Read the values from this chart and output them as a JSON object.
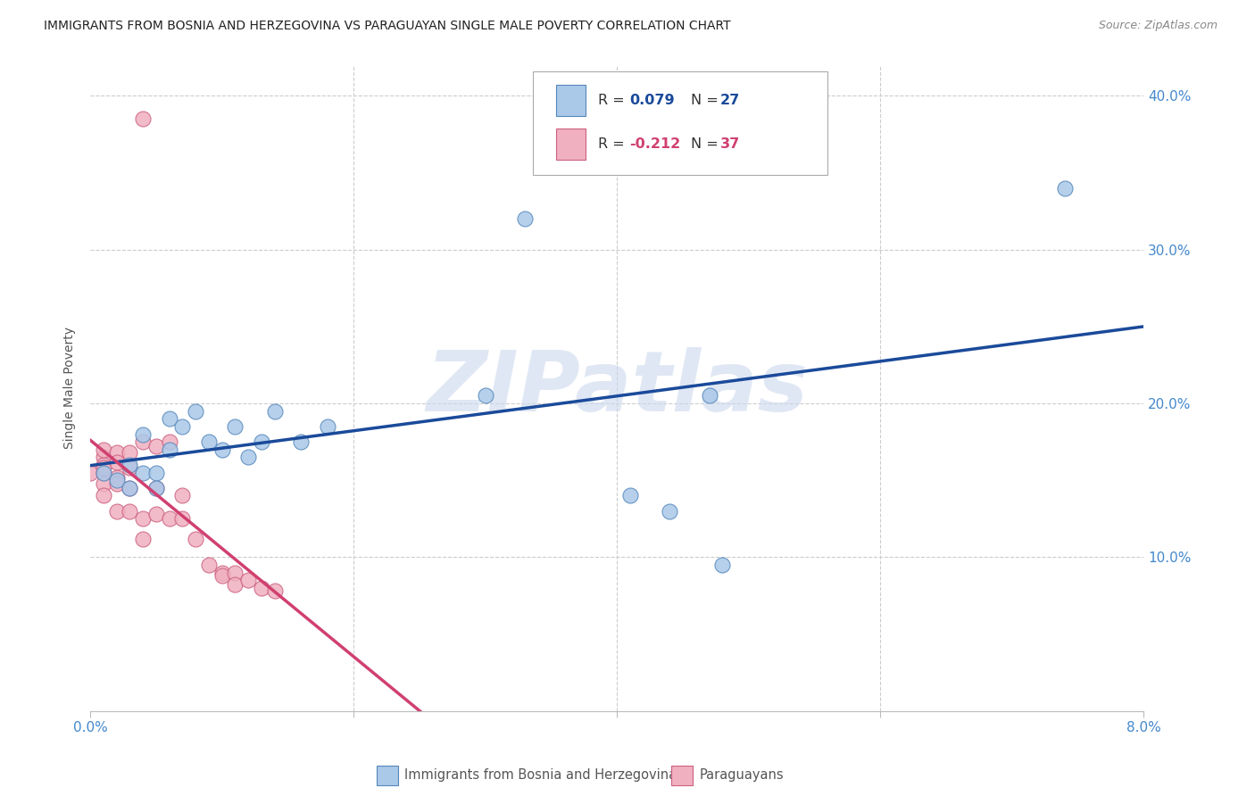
{
  "title": "IMMIGRANTS FROM BOSNIA AND HERZEGOVINA VS PARAGUAYAN SINGLE MALE POVERTY CORRELATION CHART",
  "source": "Source: ZipAtlas.com",
  "ylabel": "Single Male Poverty",
  "legend_label_blue": "Immigrants from Bosnia and Herzegovina",
  "legend_label_pink": "Paraguayans",
  "xlim": [
    0.0,
    0.08
  ],
  "ylim": [
    0.0,
    0.42
  ],
  "blue_scatter": [
    [
      0.001,
      0.155
    ],
    [
      0.002,
      0.15
    ],
    [
      0.003,
      0.16
    ],
    [
      0.003,
      0.145
    ],
    [
      0.004,
      0.155
    ],
    [
      0.004,
      0.18
    ],
    [
      0.005,
      0.155
    ],
    [
      0.005,
      0.145
    ],
    [
      0.006,
      0.19
    ],
    [
      0.006,
      0.17
    ],
    [
      0.007,
      0.185
    ],
    [
      0.008,
      0.195
    ],
    [
      0.009,
      0.175
    ],
    [
      0.01,
      0.17
    ],
    [
      0.011,
      0.185
    ],
    [
      0.012,
      0.165
    ],
    [
      0.013,
      0.175
    ],
    [
      0.014,
      0.195
    ],
    [
      0.016,
      0.175
    ],
    [
      0.018,
      0.185
    ],
    [
      0.03,
      0.205
    ],
    [
      0.033,
      0.32
    ],
    [
      0.041,
      0.14
    ],
    [
      0.044,
      0.13
    ],
    [
      0.047,
      0.205
    ],
    [
      0.048,
      0.095
    ],
    [
      0.074,
      0.34
    ]
  ],
  "pink_scatter": [
    [
      0.0,
      0.155
    ],
    [
      0.001,
      0.165
    ],
    [
      0.001,
      0.155
    ],
    [
      0.001,
      0.148
    ],
    [
      0.001,
      0.14
    ],
    [
      0.001,
      0.16
    ],
    [
      0.001,
      0.17
    ],
    [
      0.001,
      0.158
    ],
    [
      0.002,
      0.168
    ],
    [
      0.002,
      0.152
    ],
    [
      0.002,
      0.162
    ],
    [
      0.002,
      0.148
    ],
    [
      0.002,
      0.13
    ],
    [
      0.003,
      0.158
    ],
    [
      0.003,
      0.145
    ],
    [
      0.003,
      0.168
    ],
    [
      0.003,
      0.13
    ],
    [
      0.004,
      0.175
    ],
    [
      0.004,
      0.125
    ],
    [
      0.004,
      0.112
    ],
    [
      0.004,
      0.385
    ],
    [
      0.005,
      0.172
    ],
    [
      0.005,
      0.145
    ],
    [
      0.005,
      0.128
    ],
    [
      0.006,
      0.175
    ],
    [
      0.006,
      0.125
    ],
    [
      0.007,
      0.14
    ],
    [
      0.007,
      0.125
    ],
    [
      0.008,
      0.112
    ],
    [
      0.009,
      0.095
    ],
    [
      0.01,
      0.09
    ],
    [
      0.01,
      0.088
    ],
    [
      0.011,
      0.09
    ],
    [
      0.011,
      0.082
    ],
    [
      0.012,
      0.085
    ],
    [
      0.013,
      0.08
    ],
    [
      0.014,
      0.078
    ]
  ],
  "blue_color": "#aac8e8",
  "pink_color": "#f0b0c0",
  "blue_line_color": "#1a4a9a",
  "pink_line_color": "#d04070",
  "blue_edge_color": "#5588bb",
  "pink_edge_color": "#cc6080",
  "watermark_text": "ZIPatlas",
  "watermark_color": "#ccd8ee",
  "axis_tick_color": "#4488cc",
  "grid_color": "#cccccc",
  "title_color": "#222222",
  "source_color": "#888888",
  "ylabel_color": "#555555",
  "legend_box_color": "#aaaaaa",
  "blue_R_text": "R = ",
  "blue_R_val": "0.079",
  "blue_N_text": "N = ",
  "blue_N_val": "27",
  "pink_R_text": "R = ",
  "pink_R_val": "-0.212",
  "pink_N_text": "N = ",
  "pink_N_val": "37"
}
